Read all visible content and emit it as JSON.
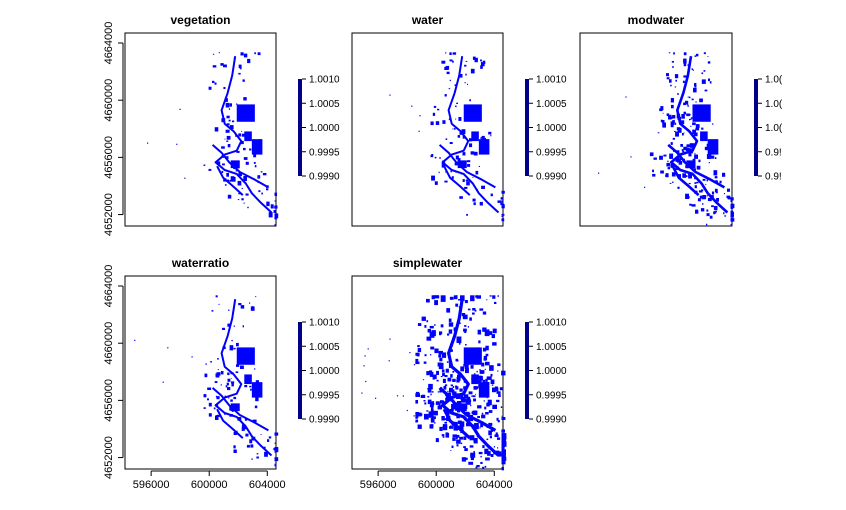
{
  "chart_data": {
    "type": "heatmap",
    "colors": {
      "mask": "#0000ff",
      "legend_bar": "#00008b",
      "frame": "#000000",
      "background": "#ffffff"
    },
    "x_ticks": [
      "596000",
      "600000",
      "604000"
    ],
    "y_ticks": [
      "4652000",
      "4656000",
      "4660000",
      "4664000"
    ],
    "xlim": [
      594200,
      604600
    ],
    "ylim": [
      4651200,
      4664700
    ],
    "legend_ticks": [
      "1.0010",
      "1.0005",
      "1.0000",
      "0.9995",
      "0.9990"
    ],
    "panels": [
      {
        "title": "vegetation",
        "extent": "small",
        "legend_ticks_shown": [
          "1.0010",
          "1.0005",
          "1.0000",
          "0.9995",
          "0.9990"
        ]
      },
      {
        "title": "water",
        "extent": "small",
        "legend_ticks_shown": [
          "1.0010",
          "1.0005",
          "1.0000",
          "0.9995",
          "0.9990"
        ]
      },
      {
        "title": "modwater",
        "extent": "medium",
        "legend_ticks_shown": [
          "1.0(",
          "1.0(",
          "1.0(",
          "0.9!",
          "0.9!"
        ]
      },
      {
        "title": "waterratio",
        "extent": "small",
        "legend_ticks_shown": [
          "1.0010",
          "1.0005",
          "1.0000",
          "0.9995",
          "0.9990"
        ]
      },
      {
        "title": "simplewater",
        "extent": "large",
        "legend_ticks_shown": [
          "1.0010",
          "1.0005",
          "1.0000",
          "0.9995",
          "0.9990"
        ]
      }
    ]
  }
}
